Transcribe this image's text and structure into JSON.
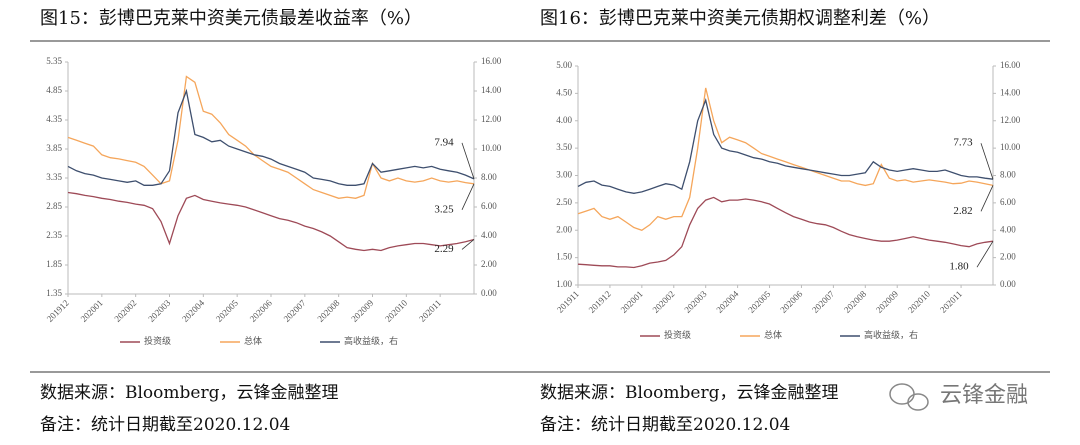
{
  "chart_data": [
    {
      "type": "line",
      "title": "图15：彭博巴克莱中资美元债最差收益率（%）",
      "categories": [
        "201912",
        null,
        null,
        null,
        "202001",
        null,
        null,
        null,
        "202002",
        null,
        null,
        null,
        "202003",
        null,
        null,
        null,
        "202004",
        null,
        null,
        null,
        "202005",
        null,
        null,
        null,
        "202006",
        null,
        null,
        null,
        "202007",
        null,
        null,
        null,
        "202008",
        null,
        null,
        null,
        "202009",
        null,
        null,
        null,
        "202010",
        null,
        null,
        null,
        "202011",
        null,
        null,
        null,
        null
      ],
      "ylim": [
        1.35,
        5.35
      ],
      "yticks": [
        1.35,
        1.85,
        2.35,
        2.85,
        3.35,
        3.85,
        4.35,
        4.85,
        5.35
      ],
      "y2lim": [
        0,
        16
      ],
      "y2ticks": [
        {
          "value": 0,
          "label": "0.00"
        },
        {
          "value": 2,
          "label": "2.00"
        },
        {
          "value": 4,
          "label": "4.00"
        },
        {
          "value": 6,
          "label": "6.00"
        },
        {
          "value": 8,
          "label": "8.00"
        },
        {
          "value": 10,
          "label": "10.00"
        },
        {
          "value": 12,
          "label": "12.00"
        },
        {
          "value": 14,
          "label": "14.00"
        },
        {
          "value": 16,
          "label": "16.00"
        }
      ],
      "grid": false,
      "legend": "bottom",
      "series": [
        {
          "name": "投资级",
          "color": "#9e4a57",
          "values": [
            3.1,
            3.08,
            3.05,
            3.03,
            3.0,
            2.98,
            2.95,
            2.93,
            2.9,
            2.88,
            2.82,
            2.6,
            2.22,
            2.7,
            3.0,
            3.05,
            2.98,
            2.95,
            2.92,
            2.9,
            2.88,
            2.85,
            2.8,
            2.75,
            2.7,
            2.65,
            2.62,
            2.58,
            2.52,
            2.48,
            2.42,
            2.35,
            2.25,
            2.15,
            2.12,
            2.1,
            2.12,
            2.1,
            2.15,
            2.18,
            2.2,
            2.22,
            2.22,
            2.2,
            2.18,
            2.2,
            2.22,
            2.25,
            2.29
          ]
        },
        {
          "name": "总体",
          "color": "#f5a65b",
          "values": [
            4.05,
            4.0,
            3.95,
            3.9,
            3.75,
            3.7,
            3.68,
            3.65,
            3.62,
            3.55,
            3.4,
            3.25,
            3.3,
            4.0,
            5.1,
            5.0,
            4.5,
            4.45,
            4.3,
            4.1,
            4.0,
            3.9,
            3.75,
            3.65,
            3.55,
            3.5,
            3.45,
            3.35,
            3.25,
            3.15,
            3.1,
            3.05,
            3.0,
            3.02,
            3.0,
            3.05,
            3.6,
            3.35,
            3.3,
            3.35,
            3.3,
            3.28,
            3.3,
            3.35,
            3.3,
            3.28,
            3.3,
            3.27,
            3.25
          ]
        },
        {
          "name": "高收益级，右",
          "color": "#3e4f6e",
          "axis": "y2",
          "values": [
            8.8,
            8.5,
            8.3,
            8.2,
            8.0,
            7.9,
            7.8,
            7.7,
            7.8,
            7.5,
            7.5,
            7.6,
            8.5,
            12.5,
            14.0,
            11.0,
            10.8,
            10.5,
            10.6,
            10.2,
            10.0,
            9.8,
            9.6,
            9.5,
            9.3,
            9.0,
            8.8,
            8.6,
            8.4,
            8.0,
            7.9,
            7.8,
            7.6,
            7.5,
            7.5,
            7.6,
            9.0,
            8.4,
            8.5,
            8.6,
            8.7,
            8.8,
            8.7,
            8.8,
            8.6,
            8.5,
            8.4,
            8.2,
            7.94
          ]
        }
      ],
      "annotations": [
        "2.29",
        "3.25",
        "7.94"
      ]
    },
    {
      "type": "line",
      "title": "图16：彭博巴克莱中资美元债期权调整利差（%）",
      "categories": [
        "201911",
        null,
        null,
        null,
        "201912",
        null,
        null,
        null,
        "202001",
        null,
        null,
        null,
        "202002",
        null,
        null,
        null,
        "202003",
        null,
        null,
        null,
        "202004",
        null,
        null,
        null,
        "202005",
        null,
        null,
        null,
        "202006",
        null,
        null,
        null,
        "202007",
        null,
        null,
        null,
        "202008",
        null,
        null,
        null,
        "202009",
        null,
        null,
        null,
        "202010",
        null,
        null,
        null,
        "202011",
        null,
        null,
        null,
        null
      ],
      "ylim": [
        1,
        5
      ],
      "yticks": [
        {
          "value": 1,
          "label": "1.00"
        },
        {
          "value": 1.5,
          "label": "1.50"
        },
        {
          "value": 2,
          "label": "2.00"
        },
        {
          "value": 2.5,
          "label": "2.50"
        },
        {
          "value": 3,
          "label": "3.00"
        },
        {
          "value": 3.5,
          "label": "3.50"
        },
        {
          "value": 4,
          "label": "4.00"
        },
        {
          "value": 4.5,
          "label": "4.50"
        },
        {
          "value": 5,
          "label": "5.00"
        }
      ],
      "y2lim": [
        0,
        16
      ],
      "y2ticks": [
        {
          "value": 0,
          "label": "0.00"
        },
        {
          "value": 2,
          "label": "2.00"
        },
        {
          "value": 4,
          "label": "4.00"
        },
        {
          "value": 6,
          "label": "6.00"
        },
        {
          "value": 8,
          "label": "8.00"
        },
        {
          "value": 10,
          "label": "10.00"
        },
        {
          "value": 12,
          "label": "12.00"
        },
        {
          "value": 14,
          "label": "14.00"
        },
        {
          "value": 16,
          "label": "16.00"
        }
      ],
      "grid": false,
      "legend": "bottom",
      "series": [
        {
          "name": "投资级",
          "color": "#9e4a57",
          "values": [
            1.38,
            1.37,
            1.36,
            1.35,
            1.35,
            1.33,
            1.33,
            1.32,
            1.35,
            1.4,
            1.42,
            1.45,
            1.55,
            1.7,
            2.1,
            2.4,
            2.55,
            2.6,
            2.52,
            2.55,
            2.55,
            2.57,
            2.55,
            2.52,
            2.48,
            2.4,
            2.32,
            2.25,
            2.2,
            2.15,
            2.12,
            2.1,
            2.05,
            1.98,
            1.92,
            1.88,
            1.85,
            1.82,
            1.8,
            1.8,
            1.82,
            1.85,
            1.88,
            1.85,
            1.82,
            1.8,
            1.78,
            1.75,
            1.72,
            1.7,
            1.75,
            1.78,
            1.8
          ]
        },
        {
          "name": "总体",
          "color": "#f5a65b",
          "values": [
            2.3,
            2.35,
            2.4,
            2.25,
            2.2,
            2.25,
            2.15,
            2.05,
            2.0,
            2.1,
            2.25,
            2.2,
            2.25,
            2.25,
            2.6,
            3.5,
            4.6,
            4.0,
            3.6,
            3.7,
            3.65,
            3.6,
            3.5,
            3.4,
            3.35,
            3.3,
            3.25,
            3.2,
            3.15,
            3.1,
            3.05,
            3.0,
            2.95,
            2.9,
            2.9,
            2.85,
            2.82,
            2.85,
            3.2,
            2.95,
            2.9,
            2.92,
            2.88,
            2.9,
            2.92,
            2.9,
            2.88,
            2.85,
            2.86,
            2.9,
            2.88,
            2.85,
            2.82
          ]
        },
        {
          "name": "高收益级，右",
          "color": "#3e4f6e",
          "axis": "y2",
          "values": [
            7.2,
            7.5,
            7.6,
            7.3,
            7.2,
            7.0,
            6.8,
            6.7,
            6.8,
            7.0,
            7.2,
            7.4,
            7.3,
            7.0,
            9.0,
            12.0,
            13.5,
            11.0,
            10.0,
            9.8,
            9.7,
            9.5,
            9.3,
            9.2,
            9.0,
            8.9,
            8.7,
            8.6,
            8.5,
            8.4,
            8.3,
            8.2,
            8.1,
            8.0,
            8.0,
            8.1,
            8.2,
            9.0,
            8.6,
            8.4,
            8.3,
            8.4,
            8.5,
            8.4,
            8.3,
            8.3,
            8.4,
            8.2,
            8.0,
            7.9,
            7.9,
            7.8,
            7.73
          ]
        }
      ],
      "annotations": [
        "1.80",
        "2.82",
        "7.73"
      ]
    }
  ],
  "footer": [
    {
      "source": "数据来源：Bloomberg，云锋金融整理",
      "note": "备注：统计日期截至2020.12.04"
    },
    {
      "source": "数据来源：Bloomberg，云锋金融整理",
      "note": "备注：统计日期截至2020.12.04"
    }
  ],
  "watermark": "云锋金融"
}
